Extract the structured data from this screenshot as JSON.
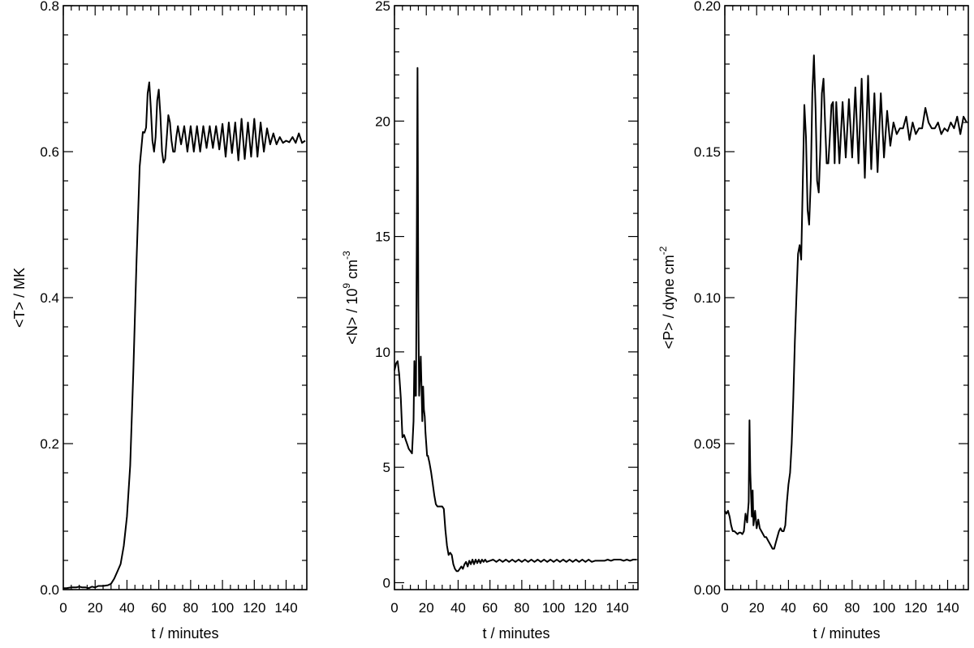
{
  "chart_data": [
    {
      "type": "line",
      "title": "",
      "xlabel": "t / minutes",
      "ylabel": "<T> / MK",
      "xlim": [
        0,
        153
      ],
      "ylim": [
        0,
        0.8
      ],
      "xticks": [
        0,
        20,
        40,
        60,
        80,
        100,
        120,
        140
      ],
      "xtick_labels": [
        "0",
        "20",
        "40",
        "60",
        "80",
        "100",
        "120",
        "140"
      ],
      "yticks": [
        0,
        0.2,
        0.4,
        0.6,
        0.8
      ],
      "ytick_labels": [
        "0.0",
        "0.2",
        "0.4",
        "0.6",
        "0.8"
      ],
      "grid": false,
      "series": [
        {
          "x": [
            0,
            2,
            5,
            8,
            10,
            12,
            14,
            16,
            18,
            20,
            22,
            25,
            28,
            30,
            32,
            34,
            36,
            38,
            40,
            42,
            44,
            46,
            48,
            50,
            51,
            52,
            53,
            54,
            55,
            56,
            57,
            58,
            59,
            60,
            61,
            62,
            63,
            64,
            65,
            66,
            67,
            68,
            69,
            70,
            71,
            72,
            74,
            76,
            78,
            80,
            82,
            84,
            86,
            88,
            90,
            92,
            94,
            96,
            98,
            100,
            102,
            104,
            106,
            108,
            110,
            112,
            114,
            116,
            118,
            120,
            122,
            124,
            126,
            128,
            130,
            132,
            134,
            136,
            138,
            140,
            142,
            144,
            146,
            148,
            150,
            152
          ],
          "y": [
            0.002,
            0.002,
            0.003,
            0.003,
            0.004,
            0.003,
            0.003,
            0.002,
            0.004,
            0.003,
            0.005,
            0.005,
            0.006,
            0.008,
            0.015,
            0.025,
            0.035,
            0.06,
            0.1,
            0.17,
            0.3,
            0.45,
            0.58,
            0.627,
            0.626,
            0.633,
            0.68,
            0.695,
            0.66,
            0.615,
            0.6,
            0.62,
            0.67,
            0.685,
            0.65,
            0.6,
            0.585,
            0.59,
            0.62,
            0.65,
            0.64,
            0.615,
            0.6,
            0.6,
            0.62,
            0.635,
            0.61,
            0.635,
            0.6,
            0.635,
            0.6,
            0.635,
            0.6,
            0.635,
            0.605,
            0.635,
            0.605,
            0.635,
            0.603,
            0.638,
            0.593,
            0.64,
            0.598,
            0.64,
            0.588,
            0.645,
            0.59,
            0.64,
            0.593,
            0.645,
            0.593,
            0.64,
            0.6,
            0.632,
            0.61,
            0.625,
            0.61,
            0.62,
            0.612,
            0.615,
            0.613,
            0.62,
            0.612,
            0.625,
            0.612,
            0.615
          ]
        }
      ]
    },
    {
      "type": "line",
      "title": "",
      "xlabel": "t / minutes",
      "ylabel": "<N> / 10",
      "ylabel_exp1": "9",
      "ylabel_mid": " cm",
      "ylabel_exp2": "-3",
      "xlim": [
        0,
        153
      ],
      "ylim": [
        -0.3,
        25
      ],
      "xticks": [
        0,
        20,
        40,
        60,
        80,
        100,
        120,
        140
      ],
      "xtick_labels": [
        "0",
        "20",
        "40",
        "60",
        "80",
        "100",
        "120",
        "140"
      ],
      "yticks": [
        0,
        5,
        10,
        15,
        20,
        25
      ],
      "ytick_labels": [
        "0",
        "5",
        "10",
        "15",
        "20",
        "25"
      ],
      "grid": false,
      "series": [
        {
          "x": [
            0,
            1,
            2,
            3,
            4,
            5,
            6,
            7,
            8,
            9,
            10,
            11,
            12,
            12.5,
            13,
            13.5,
            14,
            14.5,
            15,
            15.5,
            16,
            16.5,
            17,
            17.5,
            18,
            18.5,
            19,
            19.5,
            20,
            20.5,
            21,
            22,
            23,
            24,
            25,
            26,
            27,
            28,
            29,
            30,
            31,
            32,
            33,
            34,
            35,
            36,
            37,
            38,
            39,
            40,
            41,
            42,
            43,
            44,
            45,
            46,
            47,
            48,
            49,
            50,
            51,
            52,
            53,
            54,
            55,
            56,
            57,
            58,
            60,
            62,
            64,
            66,
            68,
            70,
            72,
            74,
            76,
            78,
            80,
            82,
            84,
            86,
            88,
            90,
            92,
            94,
            96,
            98,
            100,
            102,
            104,
            106,
            108,
            110,
            112,
            114,
            116,
            118,
            120,
            122,
            124,
            126,
            128,
            130,
            132,
            134,
            136,
            138,
            140,
            142,
            144,
            146,
            148,
            150,
            152
          ],
          "y": [
            9.2,
            9.5,
            9.6,
            9.0,
            8.0,
            6.3,
            6.4,
            6.2,
            6.0,
            5.8,
            5.7,
            5.6,
            7.0,
            9.6,
            8.1,
            8.1,
            15.0,
            22.3,
            12.0,
            8.1,
            9.0,
            9.8,
            8.5,
            7.0,
            8.5,
            7.5,
            7.2,
            6.5,
            6.0,
            5.5,
            5.5,
            5.2,
            4.8,
            4.3,
            3.8,
            3.4,
            3.3,
            3.3,
            3.3,
            3.3,
            3.2,
            2.3,
            1.6,
            1.2,
            1.3,
            1.2,
            0.8,
            0.6,
            0.5,
            0.5,
            0.6,
            0.7,
            0.6,
            0.8,
            0.9,
            0.7,
            0.95,
            0.8,
            1.0,
            0.8,
            1.0,
            0.85,
            1.0,
            0.85,
            1.0,
            0.9,
            1.0,
            0.9,
            0.95,
            1.0,
            0.9,
            1.0,
            0.9,
            1.0,
            0.9,
            1.0,
            0.9,
            1.0,
            0.9,
            1.0,
            0.9,
            1.0,
            0.9,
            1.0,
            0.9,
            1.0,
            0.9,
            1.0,
            0.9,
            1.0,
            0.9,
            1.0,
            0.9,
            1.0,
            0.9,
            1.0,
            0.9,
            1.0,
            0.9,
            1.0,
            0.9,
            0.95,
            0.95,
            0.95,
            0.95,
            1.0,
            0.95,
            1.0,
            1.0,
            1.0,
            0.95,
            1.0,
            0.95,
            1.0,
            1.0
          ]
        }
      ]
    },
    {
      "type": "line",
      "title": "",
      "xlabel": "t / minutes",
      "ylabel": "<P> / dyne cm",
      "ylabel_exp": "-2",
      "xlim": [
        0,
        153
      ],
      "ylim": [
        0,
        0.2
      ],
      "xticks": [
        0,
        20,
        40,
        60,
        80,
        100,
        120,
        140
      ],
      "xtick_labels": [
        "0",
        "20",
        "40",
        "60",
        "80",
        "100",
        "120",
        "140"
      ],
      "yticks": [
        0,
        0.05,
        0.1,
        0.15,
        0.2
      ],
      "ytick_labels": [
        "0.00",
        "0.05",
        "0.10",
        "0.15",
        "0.20"
      ],
      "grid": false,
      "series": [
        {
          "x": [
            0,
            1,
            2,
            3,
            4,
            5,
            6,
            7,
            8,
            9,
            10,
            11,
            12,
            13,
            14,
            15,
            15.5,
            16,
            16.5,
            17,
            17.5,
            18,
            19,
            20,
            21,
            22,
            23,
            24,
            25,
            26,
            27,
            28,
            29,
            30,
            31,
            32,
            33,
            34,
            35,
            36,
            37,
            38,
            39,
            40,
            41,
            42,
            43,
            44,
            45,
            46,
            47,
            48,
            49,
            50,
            51,
            52,
            53,
            54,
            55,
            56,
            57,
            58,
            59,
            60,
            61,
            62,
            63,
            64,
            65,
            66,
            67,
            68,
            69,
            70,
            72,
            74,
            76,
            78,
            80,
            82,
            84,
            86,
            88,
            90,
            92,
            94,
            96,
            98,
            100,
            102,
            104,
            106,
            108,
            110,
            112,
            114,
            116,
            118,
            120,
            122,
            124,
            126,
            128,
            130,
            132,
            134,
            136,
            138,
            140,
            142,
            144,
            146,
            148,
            150,
            152
          ],
          "y": [
            0.027,
            0.026,
            0.027,
            0.025,
            0.022,
            0.02,
            0.02,
            0.0195,
            0.019,
            0.0195,
            0.0195,
            0.019,
            0.02,
            0.026,
            0.023,
            0.03,
            0.058,
            0.04,
            0.032,
            0.025,
            0.034,
            0.022,
            0.027,
            0.021,
            0.024,
            0.021,
            0.02,
            0.019,
            0.018,
            0.018,
            0.017,
            0.016,
            0.015,
            0.014,
            0.014,
            0.016,
            0.018,
            0.02,
            0.021,
            0.02,
            0.02,
            0.022,
            0.03,
            0.036,
            0.04,
            0.05,
            0.065,
            0.085,
            0.1,
            0.115,
            0.118,
            0.113,
            0.14,
            0.166,
            0.155,
            0.13,
            0.125,
            0.14,
            0.17,
            0.183,
            0.165,
            0.14,
            0.136,
            0.15,
            0.17,
            0.175,
            0.16,
            0.146,
            0.146,
            0.155,
            0.166,
            0.167,
            0.146,
            0.167,
            0.146,
            0.167,
            0.148,
            0.168,
            0.148,
            0.172,
            0.146,
            0.175,
            0.141,
            0.176,
            0.144,
            0.17,
            0.143,
            0.17,
            0.148,
            0.164,
            0.152,
            0.16,
            0.156,
            0.158,
            0.158,
            0.162,
            0.154,
            0.16,
            0.156,
            0.158,
            0.158,
            0.165,
            0.16,
            0.158,
            0.158,
            0.16,
            0.156,
            0.158,
            0.157,
            0.16,
            0.158,
            0.162,
            0.156,
            0.162,
            0.16
          ]
        }
      ]
    }
  ]
}
